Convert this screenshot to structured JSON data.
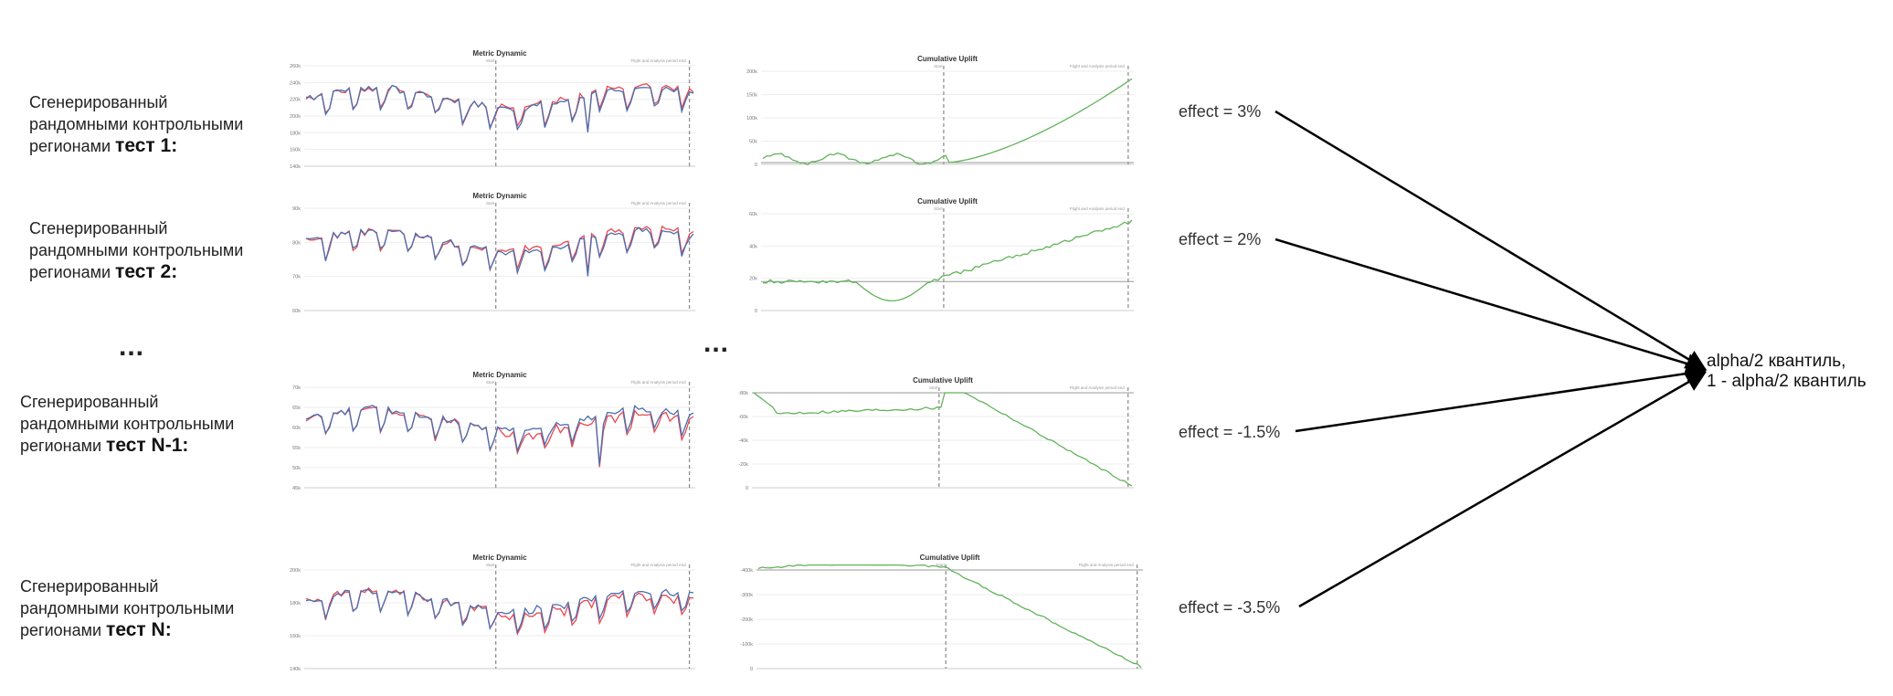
{
  "rows": [
    {
      "label_lines": [
        "Сгенерированный",
        "рандомными контрольными"
      ],
      "label_last_prefix": "регионами ",
      "label_last_strong": "тест 1:",
      "effect": "effect = 3%"
    },
    {
      "label_lines": [
        "Сгенерированный",
        "рандомными контрольными"
      ],
      "label_last_prefix": "регионами ",
      "label_last_strong": "тест 2:",
      "effect": "effect = 2%"
    },
    {
      "label_lines": [
        "Сгенерированный",
        "рандомными контрольными"
      ],
      "label_last_prefix": "регионами ",
      "label_last_strong": "тест N-1:",
      "effect": "effect = -1.5%"
    },
    {
      "label_lines": [
        "Сгенерированный",
        "рандомными контрольными"
      ],
      "label_last_prefix": "регионами ",
      "label_last_strong": "тест N:",
      "effect": "effect = -3.5%"
    }
  ],
  "ellipsis": "...",
  "result_lines": [
    "alpha/2  квантиль,",
    "1 - alpha/2 квантиль"
  ],
  "colors": {
    "test_line": "#e8484f",
    "control_line": "#4a6fb0",
    "uplift_line": "#62b35a",
    "dash": "#888888",
    "arrow": "#000000"
  },
  "chart_data": [
    {
      "type": "line",
      "title": "Metric Dynamic",
      "vlines": [
        "Start",
        "Flight and Analysis period end"
      ],
      "yticks": [
        "140k",
        "160k",
        "180k",
        "200k",
        "220k",
        "240k",
        "260k"
      ],
      "series": [
        {
          "color": "test"
        },
        {
          "color": "control"
        }
      ]
    },
    {
      "type": "line",
      "title": "Cumulative Uplift",
      "vlines": [
        "Start",
        "Flight and Analysis period end"
      ],
      "yticks": [
        "0",
        "50k",
        "100k",
        "150k",
        "200k"
      ],
      "shape": "up_late"
    },
    {
      "type": "line",
      "title": "Metric Dynamic",
      "vlines": [
        "Start",
        "Flight and Analysis period end"
      ],
      "yticks": [
        "60k",
        "70k",
        "80k",
        "90k"
      ],
      "series": [
        {
          "color": "test"
        },
        {
          "color": "control"
        }
      ]
    },
    {
      "type": "line",
      "title": "Cumulative Uplift",
      "vlines": [
        "Start",
        "Flight and Analysis period end"
      ],
      "yticks": [
        "0",
        "20k",
        "40k",
        "60k"
      ],
      "shape": "dip_then_up"
    },
    {
      "type": "line",
      "title": "Metric Dynamic",
      "vlines": [
        "Start",
        "Flight and Analysis period end"
      ],
      "yticks": [
        "45k",
        "50k",
        "55k",
        "60k",
        "65k",
        "70k"
      ],
      "series": [
        {
          "color": "test"
        },
        {
          "color": "control"
        }
      ]
    },
    {
      "type": "line",
      "title": "Cumulative Uplift",
      "vlines": [
        "Start",
        "Flight and Analysis period end"
      ],
      "yticks": [
        "0",
        "-20k",
        "-40k",
        "-60k",
        "-80k"
      ],
      "shape": "down"
    },
    {
      "type": "line",
      "title": "Metric Dynamic",
      "vlines": [
        "Start",
        "Flight and Analysis period end"
      ],
      "yticks": [
        "140k",
        "160k",
        "180k",
        "200k"
      ],
      "series": [
        {
          "color": "test"
        },
        {
          "color": "control"
        }
      ]
    },
    {
      "type": "line",
      "title": "Cumulative Uplift",
      "vlines": [
        "Start",
        "Flight and Analysis period end"
      ],
      "yticks": [
        "0",
        "-100k",
        "-200k",
        "-300k",
        "-400k"
      ],
      "shape": "down_late"
    }
  ]
}
